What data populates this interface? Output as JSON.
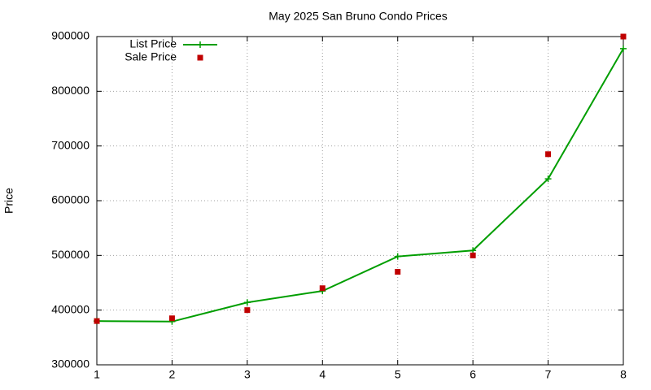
{
  "chart_data": {
    "type": "line",
    "title": "May 2025 San Bruno Condo Prices",
    "y_label": "Price",
    "x": [
      1,
      2,
      3,
      4,
      5,
      6,
      7,
      8
    ],
    "series": [
      {
        "name": "List Price",
        "color": "#009e00",
        "style": "line-points",
        "values": [
          380000,
          379000,
          414000,
          435000,
          498000,
          509000,
          640000,
          878000
        ]
      },
      {
        "name": "Sale Price",
        "color": "#c00000",
        "style": "points",
        "values": [
          380000,
          385000,
          400000,
          440000,
          470000,
          500000,
          685000,
          900000
        ]
      }
    ],
    "xlim": [
      1,
      8
    ],
    "xticks": [
      1,
      2,
      3,
      4,
      5,
      6,
      7,
      8
    ],
    "ylim": [
      300000,
      900000
    ],
    "yticks": [
      300000,
      400000,
      500000,
      600000,
      700000,
      800000,
      900000
    ],
    "grid": true,
    "legend": "top-left"
  }
}
